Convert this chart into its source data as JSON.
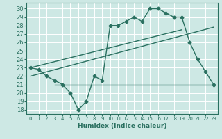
{
  "xlabel": "Humidex (Indice chaleur)",
  "bg_color": "#cde8e4",
  "line_color": "#2a7060",
  "grid_color": "#ffffff",
  "xlim": [
    -0.5,
    23.5
  ],
  "ylim": [
    17.5,
    30.7
  ],
  "xticks": [
    0,
    1,
    2,
    3,
    4,
    5,
    6,
    7,
    8,
    9,
    10,
    11,
    12,
    13,
    14,
    15,
    16,
    17,
    18,
    19,
    20,
    21,
    22,
    23
  ],
  "yticks": [
    18,
    19,
    20,
    21,
    22,
    23,
    24,
    25,
    26,
    27,
    28,
    29,
    30
  ],
  "main_x": [
    0,
    1,
    2,
    3,
    4,
    5,
    6,
    7,
    8,
    9,
    10,
    11,
    12,
    13,
    14,
    15,
    16,
    17,
    18,
    19,
    20,
    21,
    22,
    23
  ],
  "main_y": [
    23,
    22.8,
    22,
    21.5,
    21,
    20,
    18,
    19,
    22,
    21.5,
    28,
    28,
    28.5,
    29,
    28.5,
    30,
    30,
    29.5,
    29,
    29,
    26,
    24,
    22.5,
    21
  ],
  "line1_x": [
    0,
    19
  ],
  "line1_y": [
    23,
    27.5
  ],
  "line2_x": [
    0,
    23
  ],
  "line2_y": [
    22,
    27.8
  ],
  "line3_x": [
    3,
    23
  ],
  "line3_y": [
    21,
    21
  ]
}
